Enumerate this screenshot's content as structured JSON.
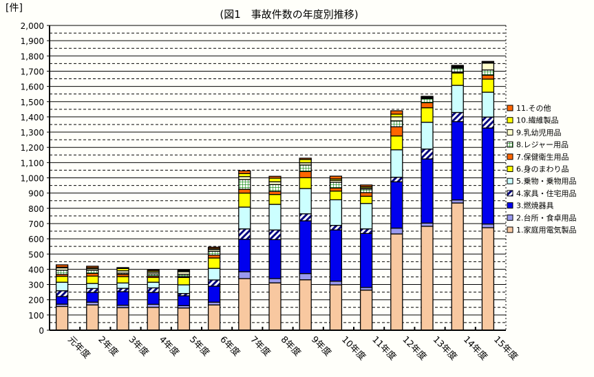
{
  "chart_data": {
    "type": "bar",
    "stacked": true,
    "title": "(図1　事故件数の年度別推移)",
    "ylabel": "[件]",
    "xlabel": "",
    "ylim": [
      0,
      2000
    ],
    "yticks": [
      "0",
      "100",
      "200",
      "300",
      "400",
      "500",
      "600",
      "700",
      "800",
      "900",
      "1,000",
      "1,100",
      "1,200",
      "1,300",
      "1,400",
      "1,500",
      "1,600",
      "1,700",
      "1,800",
      "1,900",
      "2,000"
    ],
    "grid": true,
    "legend": "right",
    "categories": [
      "元年度",
      "2年度",
      "3年度",
      "4年度",
      "5年度",
      "6年度",
      "7年度",
      "8年度",
      "9年度",
      "10年度",
      "11年度",
      "12年度",
      "13年度",
      "14年度",
      "15年度"
    ],
    "series": [
      {
        "name": "1.家庭用電気製品",
        "color": "#f8c8a0",
        "values": [
          156,
          166,
          148,
          150,
          146,
          166,
          339,
          311,
          331,
          298,
          263,
          632,
          682,
          835,
          673
        ]
      },
      {
        "name": "2.台所・食卓用品",
        "color": "#9999ee",
        "values": [
          15,
          18,
          16,
          20,
          15,
          18,
          45,
          28,
          41,
          24,
          18,
          38,
          21,
          20,
          24
        ]
      },
      {
        "name": "3.燃焼器具",
        "color": "#0000ee",
        "values": [
          50,
          64,
          89,
          78,
          65,
          105,
          213,
          256,
          346,
          336,
          354,
          304,
          421,
          514,
          630
        ]
      },
      {
        "name": "4.家具・住宅用品",
        "color": "hatch",
        "values": [
          38,
          26,
          22,
          30,
          15,
          41,
          68,
          63,
          46,
          30,
          30,
          30,
          65,
          60,
          72
        ]
      },
      {
        "name": "5.乗物・乗物用品",
        "color": "#ccffff",
        "values": [
          56,
          33,
          35,
          37,
          57,
          76,
          143,
          168,
          166,
          168,
          167,
          180,
          176,
          178,
          163
        ]
      },
      {
        "name": "6.身のまわり品",
        "color": "#ffff00",
        "values": [
          39,
          48,
          42,
          31,
          48,
          68,
          92,
          65,
          71,
          57,
          47,
          91,
          95,
          81,
          86
        ]
      },
      {
        "name": "7.保健衛生用品",
        "color": "#ff6600",
        "values": [
          12,
          18,
          15,
          9,
          6,
          19,
          25,
          20,
          41,
          20,
          24,
          60,
          33,
          7,
          26
        ]
      },
      {
        "name": "8.レジャー用品",
        "color": "grid",
        "values": [
          28,
          20,
          8,
          14,
          15,
          25,
          64,
          45,
          42,
          38,
          23,
          39,
          27,
          25,
          34
        ]
      },
      {
        "name": "9.乳幼児用品",
        "color": "#ffffcc",
        "values": [
          15,
          10,
          15,
          12,
          17,
          12,
          19,
          18,
          15,
          12,
          8,
          26,
          6,
          6,
          45
        ]
      },
      {
        "name": "10.繊維製品",
        "color": "#ffff00",
        "values": [
          5,
          7,
          15,
          8,
          6,
          7,
          20,
          24,
          22,
          10,
          8,
          18,
          5,
          6,
          5
        ]
      },
      {
        "name": "11.その他",
        "color": "#ff6600",
        "values": [
          15,
          10,
          6,
          7,
          6,
          8,
          18,
          12,
          8,
          18,
          11,
          22,
          4,
          6,
          6
        ]
      }
    ]
  }
}
